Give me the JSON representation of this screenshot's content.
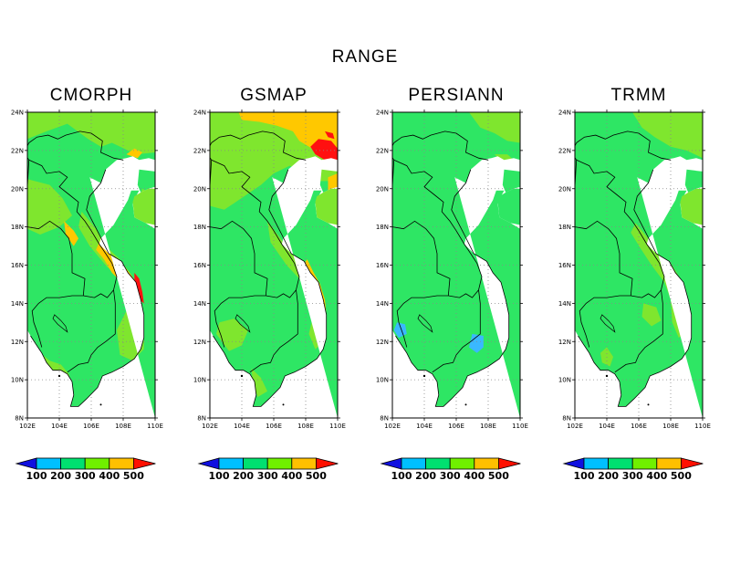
{
  "title": "RANGE",
  "panels": [
    {
      "name": "CMORPH",
      "variant": "cmorph"
    },
    {
      "name": "GSMAP",
      "variant": "gsmap"
    },
    {
      "name": "PERSIANN",
      "variant": "persiann"
    },
    {
      "name": "TRMM",
      "variant": "trmm"
    }
  ],
  "lon_labels": [
    "102E",
    "104E",
    "106E",
    "108E",
    "110E"
  ],
  "lat_labels": [
    "24N",
    "22N",
    "20N",
    "18N",
    "16N",
    "14N",
    "12N",
    "10N",
    "8N"
  ],
  "colorbar": {
    "labels": [
      "100",
      "200",
      "300",
      "400",
      "500"
    ],
    "colors": [
      "#1010e0",
      "#00c0ff",
      "#00e070",
      "#70f000",
      "#ffc000",
      "#ff1000"
    ]
  },
  "palette": {
    "green": "#2ee664",
    "lightgreen": "#7fe62e",
    "orange": "#ffc800",
    "red": "#ff1010",
    "cyan": "#3ab8ff",
    "water": "#ffffff"
  }
}
